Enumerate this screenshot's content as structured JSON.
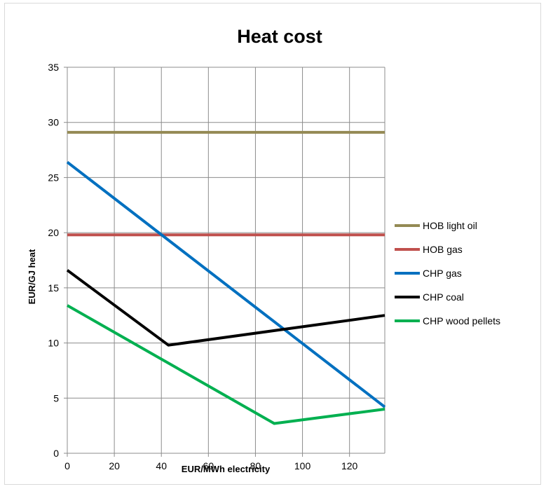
{
  "chart_data": {
    "type": "line",
    "title": "Heat cost",
    "xlabel": "EUR/MWh electricity",
    "ylabel": "EUR/GJ heat",
    "xlim": [
      0,
      135
    ],
    "ylim": [
      0,
      35
    ],
    "xticks": [
      0,
      20,
      40,
      60,
      80,
      100,
      120
    ],
    "yticks": [
      0,
      5,
      10,
      15,
      20,
      25,
      30,
      35
    ],
    "grid": true,
    "legend_position": "right",
    "series": [
      {
        "name": "HOB light oil",
        "color": "#948a54",
        "x": [
          0,
          135
        ],
        "y": [
          29.1,
          29.1
        ]
      },
      {
        "name": "HOB gas",
        "color": "#c0504d",
        "x": [
          0,
          135
        ],
        "y": [
          19.8,
          19.8
        ]
      },
      {
        "name": "CHP gas",
        "color": "#0070c0",
        "x": [
          0,
          135
        ],
        "y": [
          26.4,
          4.2
        ]
      },
      {
        "name": "CHP coal",
        "color": "#000000",
        "x": [
          0,
          43,
          135
        ],
        "y": [
          16.6,
          9.8,
          12.5
        ]
      },
      {
        "name": "CHP wood pellets",
        "color": "#00b050",
        "x": [
          0,
          88,
          135
        ],
        "y": [
          13.4,
          2.7,
          4.0
        ]
      }
    ]
  }
}
